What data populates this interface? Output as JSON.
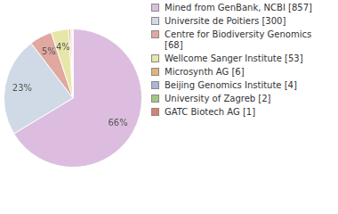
{
  "chart_data": {
    "type": "pie",
    "categories": [
      "Mined from GenBank, NCBI [857]",
      "Universite de Poitiers [300]",
      "Centre for Biodiversity Genomics [68]",
      "Wellcome Sanger Institute [53]",
      "Microsynth AG [6]",
      "Beijing Genomics Institute [4]",
      "University of Zagreb [2]",
      "GATC Biotech AG [1]"
    ],
    "values": [
      857,
      300,
      68,
      53,
      6,
      4,
      2,
      1
    ],
    "colors": [
      "#dcbde0",
      "#cfdae6",
      "#e0a89f",
      "#e6e6a8",
      "#e8b07e",
      "#a9b5d9",
      "#a3c77d",
      "#d98170"
    ],
    "data_labels": true,
    "value_labels": [
      "66%",
      "23%",
      "5%",
      "4%",
      null,
      null,
      null,
      null
    ],
    "legend": "right"
  }
}
